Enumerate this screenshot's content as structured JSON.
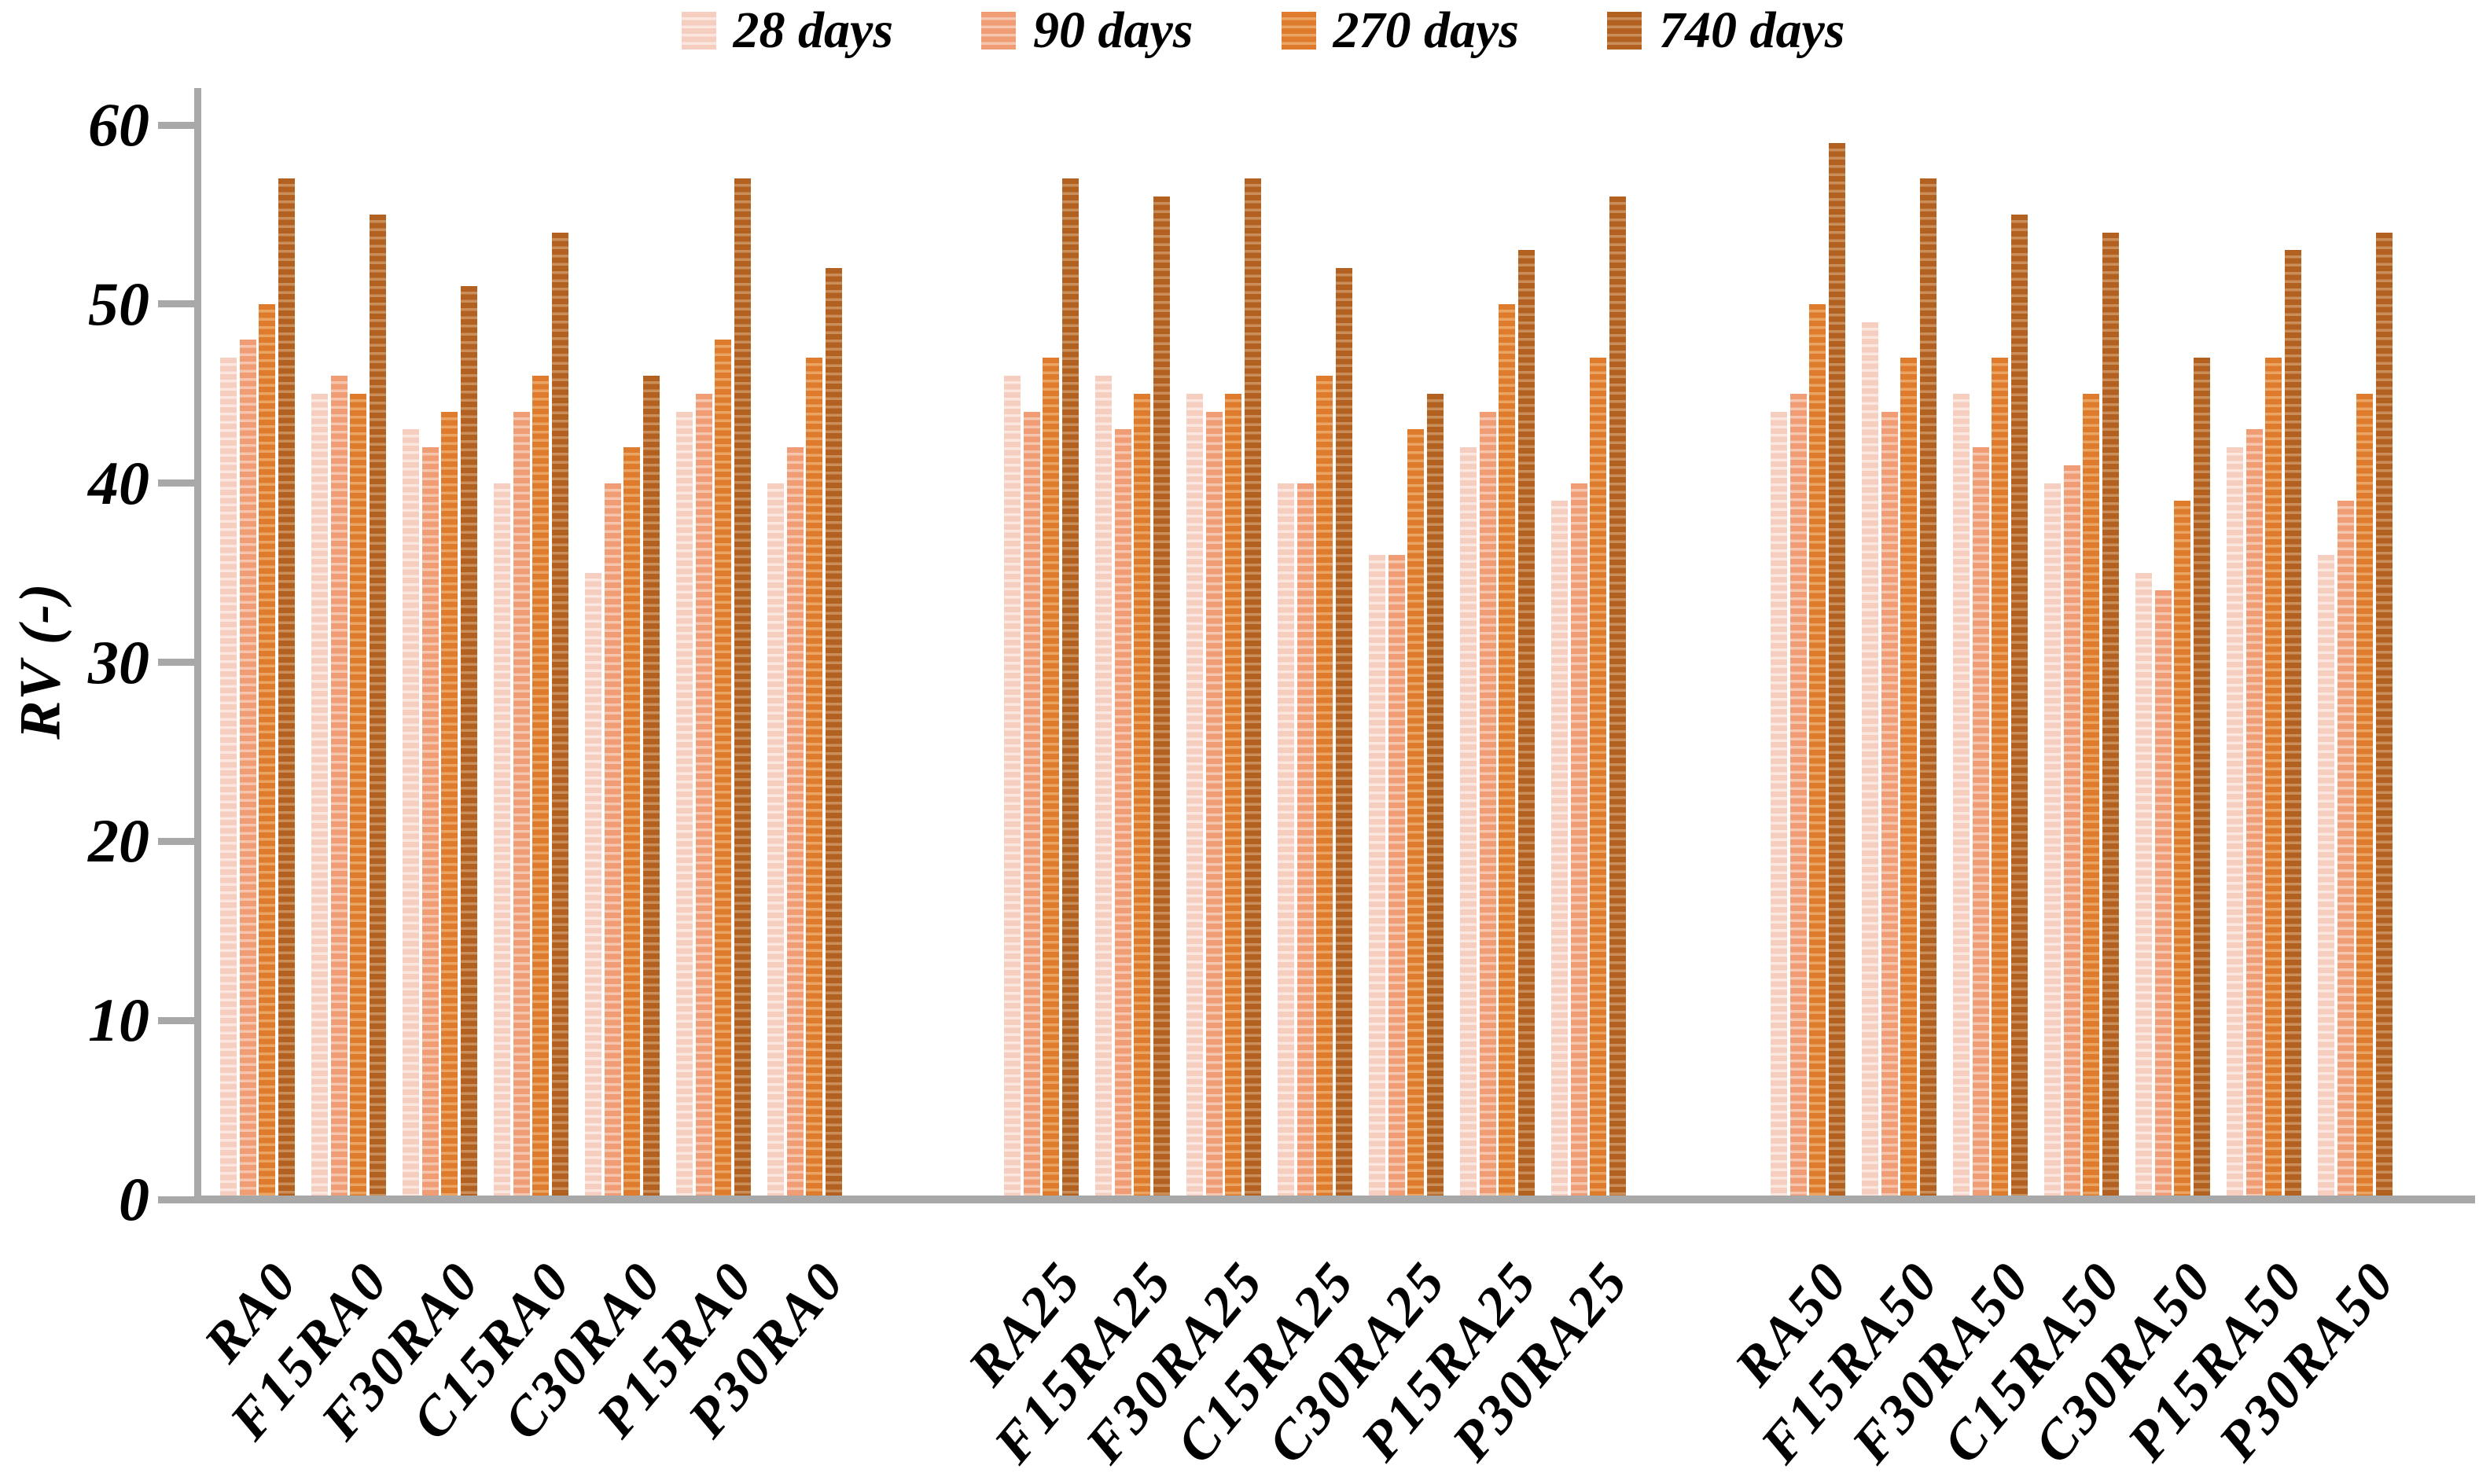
{
  "chart_data": {
    "type": "bar",
    "title": "",
    "ylabel": "RV (-)",
    "xlabel": "",
    "ylim": [
      0,
      60
    ],
    "yticks": [
      0,
      10,
      20,
      30,
      40,
      50,
      60
    ],
    "grid": false,
    "legend_position": "top",
    "bar_pattern": "horizontal-stripes",
    "axis_color": "#A8A8A8",
    "text_color": "#000000",
    "background_color": "#FFFFFF",
    "category_supergroups": [
      [
        "RA0",
        "F15RA0",
        "F30RA0",
        "C15RA0",
        "C30RA0",
        "P15RA0",
        "P30RA0"
      ],
      [
        "RA25",
        "F15RA25",
        "F30RA25",
        "C15RA25",
        "C30RA25",
        "P15RA25",
        "P30RA25"
      ],
      [
        "RA50",
        "F15RA50",
        "F30RA50",
        "C15RA50",
        "C30RA50",
        "P15RA50",
        "P30RA50"
      ]
    ],
    "series": [
      {
        "name": "28 days",
        "color": "#F6CEC0",
        "stripe_color": "#FBE7E0",
        "values": [
          [
            47,
            45,
            43,
            40,
            35,
            44,
            40
          ],
          [
            46,
            46,
            45,
            40,
            36,
            42,
            39
          ],
          [
            44,
            49,
            45,
            40,
            35,
            42,
            36
          ]
        ]
      },
      {
        "name": "90 days",
        "color": "#F09C75",
        "stripe_color": "#F6C5AD",
        "values": [
          [
            48,
            46,
            42,
            44,
            40,
            45,
            42
          ],
          [
            44,
            43,
            44,
            40,
            36,
            44,
            40
          ],
          [
            45,
            44,
            42,
            41,
            34,
            43,
            39
          ]
        ]
      },
      {
        "name": "270 days",
        "color": "#DE7B2C",
        "stripe_color": "#EAA464",
        "values": [
          [
            50,
            45,
            44,
            46,
            42,
            48,
            47
          ],
          [
            47,
            45,
            45,
            46,
            43,
            50,
            47
          ],
          [
            50,
            47,
            47,
            45,
            39,
            47,
            45
          ]
        ]
      },
      {
        "name": "740 days",
        "color": "#B26120",
        "stripe_color": "#CA8E5B",
        "values": [
          [
            57,
            55,
            51,
            54,
            46,
            57,
            52
          ],
          [
            57,
            56,
            57,
            52,
            45,
            53,
            56
          ],
          [
            59,
            57,
            55,
            54,
            47,
            53,
            54
          ]
        ]
      }
    ]
  }
}
